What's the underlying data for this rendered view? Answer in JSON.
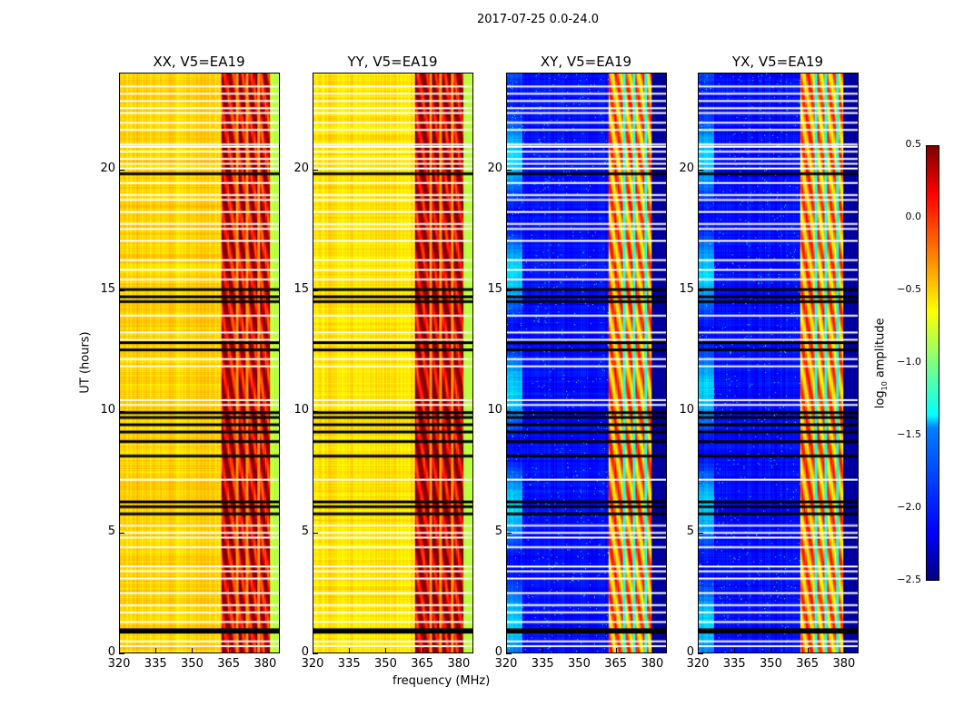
{
  "figure_title": "2017-07-25 0.0-24.0",
  "chart_data": [
    {
      "type": "heatmap",
      "title": "XX, V5=EA19",
      "xlabel": "",
      "ylabel": "UT (hours)",
      "xlim": [
        320,
        386
      ],
      "ylim": [
        0,
        24
      ],
      "xticks": [
        "320",
        "335",
        "350",
        "365",
        "380"
      ],
      "yticks": [
        "0",
        "5",
        "10",
        "15",
        "20"
      ],
      "baseline_log_amp": -0.5,
      "band_log_amp": 0.25,
      "band_mhz": [
        362,
        382
      ]
    },
    {
      "type": "heatmap",
      "title": "YY, V5=EA19",
      "xlabel": "frequency (MHz)",
      "ylabel": "",
      "xlim": [
        320,
        386
      ],
      "ylim": [
        0,
        24
      ],
      "xticks": [
        "320",
        "335",
        "350",
        "365",
        "380"
      ],
      "yticks": [
        "0",
        "5",
        "10",
        "15",
        "20"
      ],
      "baseline_log_amp": -0.55,
      "band_log_amp": 0.3,
      "band_mhz": [
        362,
        382
      ]
    },
    {
      "type": "heatmap",
      "title": "XY, V5=EA19",
      "xlabel": "",
      "ylabel": "",
      "xlim": [
        320,
        386
      ],
      "ylim": [
        0,
        24
      ],
      "xticks": [
        "320",
        "335",
        "350",
        "365",
        "380"
      ],
      "yticks": [
        "0",
        "5",
        "10",
        "15",
        "20"
      ],
      "baseline_log_amp": -2.1,
      "band_log_amp": -0.3,
      "band_mhz": [
        362,
        380
      ]
    },
    {
      "type": "heatmap",
      "title": "YX, V5=EA19",
      "xlabel": "",
      "ylabel": "",
      "xlim": [
        320,
        386
      ],
      "ylim": [
        0,
        24
      ],
      "xticks": [
        "320",
        "335",
        "350",
        "365",
        "380"
      ],
      "yticks": [
        "0",
        "5",
        "10",
        "15",
        "20"
      ],
      "baseline_log_amp": -2.1,
      "band_log_amp": -0.3,
      "band_mhz": [
        362,
        380
      ]
    }
  ],
  "flagged_ut_white": [
    0.3,
    0.5,
    1.3,
    1.7,
    2.0,
    2.5,
    3.1,
    3.4,
    3.6,
    4.4,
    4.8,
    5.0,
    5.3,
    7.2,
    10.3,
    10.5,
    11.9,
    12.2,
    13.0,
    13.3,
    14.0,
    15.5,
    15.9,
    16.3,
    17.1,
    17.6,
    17.8,
    18.3,
    18.8,
    19.0,
    19.5,
    20.1,
    20.3,
    20.5,
    20.8,
    21.0,
    21.1,
    21.7,
    22.0,
    22.4,
    22.6,
    22.9,
    23.2,
    23.5
  ],
  "flagged_ut_black": [
    0.9,
    1.0,
    5.8,
    6.1,
    6.3,
    8.2,
    8.8,
    9.2,
    9.5,
    9.8,
    10.0,
    12.6,
    12.9,
    14.6,
    14.8,
    15.1,
    19.9
  ],
  "colorbar": {
    "label": "log",
    "label_sub": "10",
    "label_rest": " amplitude",
    "ticks": [
      "0.5",
      "0.0",
      "−0.5",
      "−1.0",
      "−1.5",
      "−2.0",
      "−2.5"
    ],
    "range": [
      -2.5,
      0.5
    ],
    "colormap": "jet"
  }
}
